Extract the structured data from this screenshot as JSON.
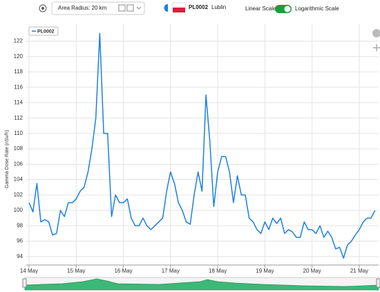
{
  "toolbar": {
    "radius_label": "Area Radius: 20 km",
    "station_id": "PL0002",
    "station_name": "Lublin",
    "linear_label": "Linear Scale",
    "log_label": "Logarithmic Scale"
  },
  "chart_data": {
    "type": "line",
    "y_label": "Gamma Dose Rate (nSv/h)",
    "categories": [
      "14 May",
      null,
      null,
      null,
      null,
      null,
      null,
      null,
      null,
      null,
      null,
      null,
      "15 May",
      null,
      null,
      null,
      null,
      null,
      null,
      null,
      null,
      null,
      null,
      null,
      "16 May",
      null,
      null,
      null,
      null,
      null,
      null,
      null,
      null,
      null,
      null,
      null,
      "17 May",
      null,
      null,
      null,
      null,
      null,
      null,
      null,
      null,
      null,
      null,
      null,
      "18 May",
      null,
      null,
      null,
      null,
      null,
      null,
      null,
      null,
      null,
      null,
      null,
      "19 May",
      null,
      null,
      null,
      null,
      null,
      null,
      null,
      null,
      null,
      null,
      null,
      "20 May",
      null,
      null,
      null,
      null,
      null,
      null,
      null,
      null,
      null,
      null,
      null,
      "21 May",
      null,
      null,
      null,
      null
    ],
    "series": [
      {
        "name": "PL0002",
        "color": "#1a7fe0",
        "values": [
          101,
          99.8,
          103.5,
          98.5,
          98.8,
          98.5,
          96.8,
          97,
          100,
          99.2,
          101,
          101,
          101.5,
          102.5,
          103,
          105,
          108,
          112,
          123,
          110,
          110,
          99.2,
          102,
          101,
          101,
          101.5,
          99,
          98,
          98,
          99,
          98,
          97.5,
          98,
          98.5,
          99,
          102.5,
          105,
          103.5,
          101,
          100,
          98.5,
          98.2,
          102,
          105,
          102.5,
          115,
          109,
          100.5,
          105,
          107,
          107,
          105,
          101,
          104.5,
          102,
          102,
          99,
          98.5,
          97.5,
          97,
          98.5,
          97.5,
          99,
          98.3,
          99,
          97,
          97.5,
          97.2,
          96.5,
          96.5,
          98.5,
          97.5,
          97.5,
          97,
          98,
          96.5,
          97.3,
          96.5,
          95,
          95.2,
          93.8,
          95.5,
          96,
          96.8,
          97.5,
          98.5,
          99,
          99,
          100
        ]
      }
    ],
    "ylim": [
      92.9,
      124.2
    ],
    "yticks": [
      94,
      96,
      98,
      100,
      102,
      104,
      106,
      108,
      110,
      112,
      114,
      116,
      118,
      120,
      122
    ],
    "grid": true,
    "log_scale": false,
    "legend": "top-left"
  }
}
